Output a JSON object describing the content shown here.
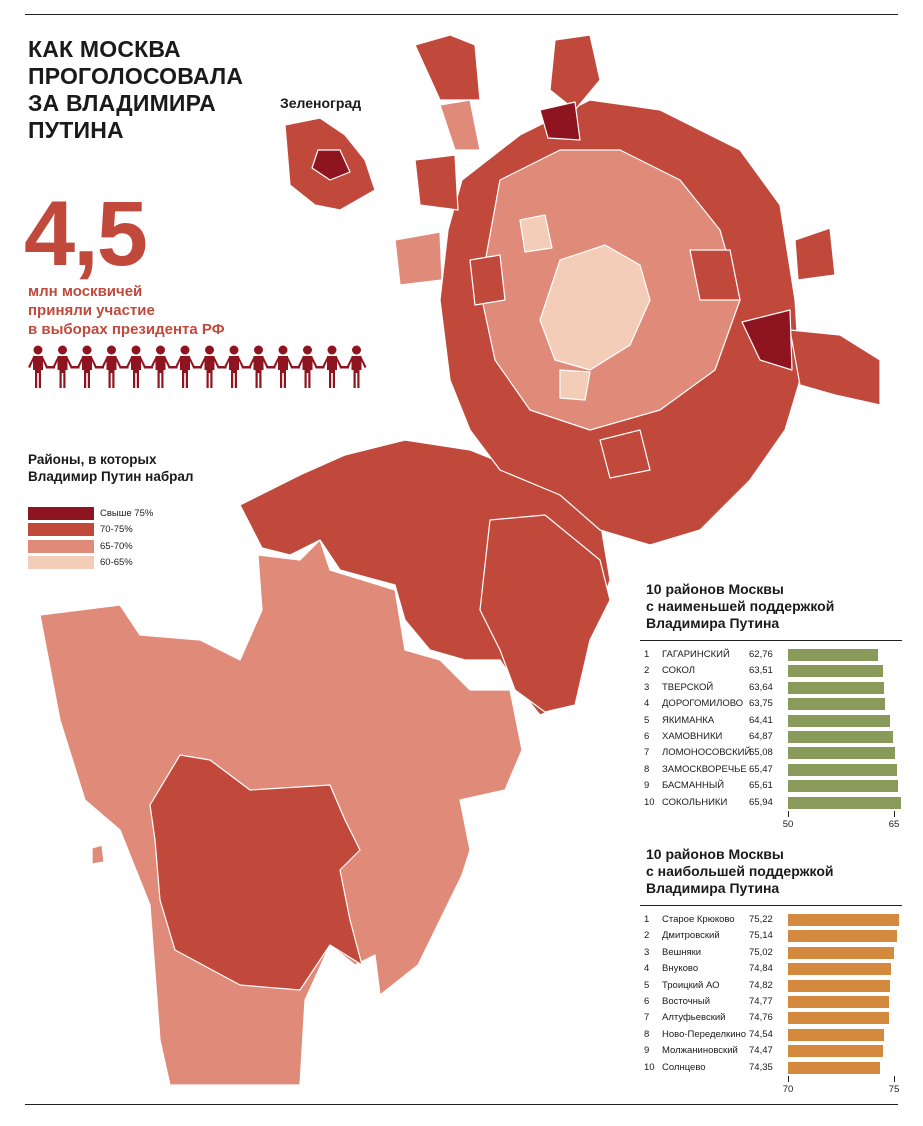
{
  "title_lines": [
    "КАК МОСКВА",
    "ПРОГОЛОСОВАЛА",
    "ЗА ВЛАДИМИРА",
    "ПУТИНА"
  ],
  "map_label": "Зеленоград",
  "big_number": "4,5",
  "big_caption_lines": [
    "млн москвичей",
    "приняли участие",
    "в выборах президента РФ"
  ],
  "people_count": 14,
  "legend": {
    "title_lines": [
      "Районы, в которых",
      "Владимир Путин набрал"
    ],
    "items": [
      {
        "label": "Свыше 75%",
        "color": "#8e1420"
      },
      {
        "label": "70-75%",
        "color": "#c0493c"
      },
      {
        "label": "65-70%",
        "color": "#e08a7a"
      },
      {
        "label": "60-65%",
        "color": "#f3cdb8"
      }
    ]
  },
  "colors": {
    "accent": "#c0493c",
    "low_bar": "#8a9a5b",
    "high_bar": "#d38a3f",
    "people": "#8e1420",
    "map_border": "#ffffff"
  },
  "low_support": {
    "title_lines": [
      "10 районов Москвы",
      "с наименьшей поддержкой",
      "Владимира Путина"
    ],
    "axis_min": 50,
    "axis_max": 65,
    "rows": [
      {
        "rank": "1",
        "name": "ГАГАРИНСКИЙ",
        "value": "62,76",
        "v": 62.76
      },
      {
        "rank": "2",
        "name": "СОКОЛ",
        "value": "63,51",
        "v": 63.51
      },
      {
        "rank": "3",
        "name": "ТВЕРСКОЙ",
        "value": "63,64",
        "v": 63.64
      },
      {
        "rank": "4",
        "name": "ДОРОГОМИЛОВО",
        "value": "63,75",
        "v": 63.75
      },
      {
        "rank": "5",
        "name": "ЯКИМАНКА",
        "value": "64,41",
        "v": 64.41
      },
      {
        "rank": "6",
        "name": "ХАМОВНИКИ",
        "value": "64,87",
        "v": 64.87
      },
      {
        "rank": "7",
        "name": "ЛОМОНОСОВСКИЙ",
        "value": "65,08",
        "v": 65.08
      },
      {
        "rank": "8",
        "name": "ЗАМОСКВОРЕЧЬЕ",
        "value": "65,47",
        "v": 65.47
      },
      {
        "rank": "9",
        "name": "БАСМАННЫЙ",
        "value": "65,61",
        "v": 65.61
      },
      {
        "rank": "10",
        "name": "СОКОЛЬНИКИ",
        "value": "65,94",
        "v": 65.94
      }
    ],
    "ticks": [
      "50",
      "65"
    ]
  },
  "high_support": {
    "title_lines": [
      "10 районов Москвы",
      "с наибольшей поддержкой",
      "Владимира Путина"
    ],
    "axis_min": 70,
    "axis_max": 75,
    "rows": [
      {
        "rank": "1",
        "name": "Старое Крюково",
        "value": "75,22",
        "v": 75.22
      },
      {
        "rank": "2",
        "name": "Дмитровский",
        "value": "75,14",
        "v": 75.14
      },
      {
        "rank": "3",
        "name": "Вешняки",
        "value": "75,02",
        "v": 75.02
      },
      {
        "rank": "4",
        "name": "Внуково",
        "value": "74,84",
        "v": 74.84
      },
      {
        "rank": "5",
        "name": "Троицкий АО",
        "value": "74,82",
        "v": 74.82
      },
      {
        "rank": "6",
        "name": "Восточный",
        "value": "74,77",
        "v": 74.77
      },
      {
        "rank": "7",
        "name": "Алтуфьевский",
        "value": "74,76",
        "v": 74.76
      },
      {
        "rank": "8",
        "name": "Ново-Переделкино",
        "value": "74,54",
        "v": 74.54
      },
      {
        "rank": "9",
        "name": "Молжаниновский",
        "value": "74,47",
        "v": 74.47
      },
      {
        "rank": "10",
        "name": "Солнцево",
        "value": "74,35",
        "v": 74.35
      }
    ],
    "ticks": [
      "70",
      "75"
    ]
  }
}
